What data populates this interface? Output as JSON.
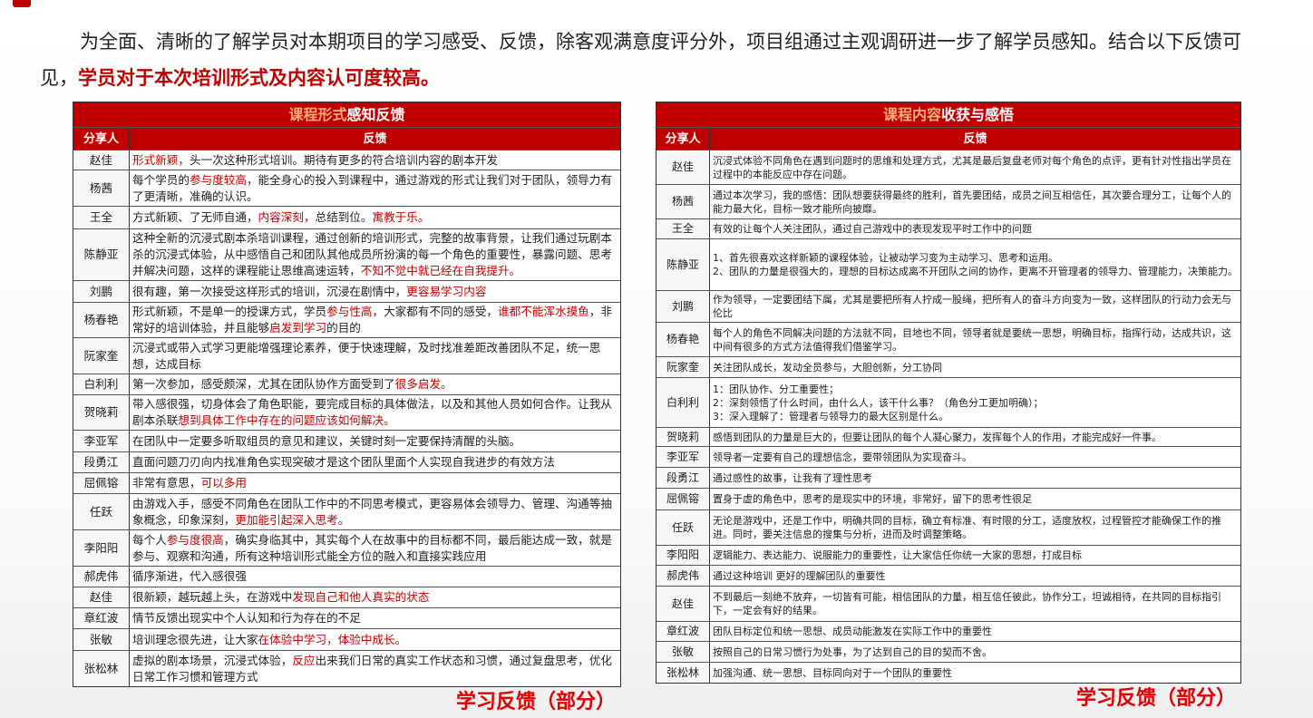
{
  "intro": {
    "text": "为全面、清晰的了解学员对本期项目的学习感受、反馈，除客观满意度评分外，项目组通过主观调研进一步了解学员感知。结合以下反馈可见，",
    "highlight": "学员对于本次培训形式及内容认可度较高。"
  },
  "colors": {
    "accent": "#c00000",
    "title_highlight": "#ffb27a"
  },
  "stamp": "学习反馈（部分）",
  "tables": [
    {
      "title_highlight": "课程形式",
      "title_rest": "感知反馈",
      "col_name": "分享人",
      "col_feedback": "反馈",
      "rows": [
        {
          "name": "赵佳",
          "segments": [
            {
              "t": "形式新颖，",
              "red": true
            },
            {
              "t": "头一次这种形式培训。期待有更多的符合培训内容的剧本开发"
            }
          ]
        },
        {
          "name": "杨茜",
          "segments": [
            {
              "t": "每个学员的"
            },
            {
              "t": "参与度较高",
              "red": true
            },
            {
              "t": "，能全身心的投入到课程中，通过游戏的形式让我们对于团队，领导力有了更清晰，准确的认识。"
            }
          ]
        },
        {
          "name": "王全",
          "segments": [
            {
              "t": "方式新颖、了无师自通，"
            },
            {
              "t": "内容深刻，",
              "red": true
            },
            {
              "t": "总结到位。"
            },
            {
              "t": "寓教于乐。",
              "red": true
            }
          ]
        },
        {
          "name": "陈静亚",
          "segments": [
            {
              "t": "这种全新的沉浸式剧本杀培训课程，通过创新的培训形式，完整的故事背景，让我们通过玩剧本杀的沉浸式体验，从中感悟自己和团队其他成员所扮演的每一个角色的重要性，暴露问题、思考并解决问题，这样的课程能让思维高速运转，"
            },
            {
              "t": "不知不觉中就已经在自我提升。",
              "red": true
            }
          ]
        },
        {
          "name": "刘鹏",
          "segments": [
            {
              "t": "很有趣，第一次接受这样形式的培训，沉浸在剧情中，"
            },
            {
              "t": "更容易学习内容",
              "red": true
            }
          ]
        },
        {
          "name": "杨春艳",
          "segments": [
            {
              "t": "形式新颖，不是单一的授课方式，学员"
            },
            {
              "t": "参与性高",
              "red": true
            },
            {
              "t": "，大家都有不同的感受，"
            },
            {
              "t": "谁都不能浑水摸鱼",
              "red": true
            },
            {
              "t": "，非常好的培训体验，并且能够"
            },
            {
              "t": "启发到学习",
              "red": true
            },
            {
              "t": "的目的"
            }
          ]
        },
        {
          "name": "阮家奎",
          "segments": [
            {
              "t": "沉浸式或带入式学习更能增强理论素养，便于快速理解，及时找准差距改善团队不足，统一思想，达成目标"
            }
          ]
        },
        {
          "name": "白利利",
          "segments": [
            {
              "t": "第一次参加，感受颇深，尤其在团队协作方面受到了"
            },
            {
              "t": "很多启发。",
              "red": true
            }
          ]
        },
        {
          "name": "贺晓莉",
          "segments": [
            {
              "t": "带入感很强，切身体会了角色职能，要完成目标的具体做法，以及和其他人员如何合作。让我从剧本杀联"
            },
            {
              "t": "想到具体工作中存在的问题应该如何解决。",
              "red": true
            }
          ]
        },
        {
          "name": "李亚军",
          "segments": [
            {
              "t": "在团队中一定要多听取组员的意见和建议，关键时刻一定要保持清醒的头脑。"
            }
          ]
        },
        {
          "name": "段勇江",
          "segments": [
            {
              "t": "直面问题刀刃向内找准角色实现突破才是这个团队里面个人实现自我进步的有效方法"
            }
          ]
        },
        {
          "name": "屈佩镕",
          "segments": [
            {
              "t": "非常有意思，"
            },
            {
              "t": "可以多用",
              "red": true
            }
          ]
        },
        {
          "name": "任跃",
          "segments": [
            {
              "t": "由游戏入手，感受不同角色在团队工作中的不同思考模式，更容易体会领导力、管理、沟通等抽象概念，印象深刻，"
            },
            {
              "t": "更加能引起深入思考。",
              "red": true
            }
          ]
        },
        {
          "name": "李阳阳",
          "segments": [
            {
              "t": "每个人"
            },
            {
              "t": "参与度很高",
              "red": true
            },
            {
              "t": "，确实身临其中，其实每个人在故事中的目标都不同，最后能达成一致，就是参与、观察和沟通，所有这种培训形式能全方位的融入和直接实践应用"
            }
          ]
        },
        {
          "name": "郝虎伟",
          "segments": [
            {
              "t": "循序渐进，代入感很强"
            }
          ]
        },
        {
          "name": "赵佳",
          "segments": [
            {
              "t": "很新颖，越玩越上头，在游戏中"
            },
            {
              "t": "发现自己和他人真实的状态",
              "red": true
            }
          ]
        },
        {
          "name": "章红波",
          "segments": [
            {
              "t": "情节反馈出现实中个人认知和行为存在的不足"
            }
          ]
        },
        {
          "name": "张敏",
          "segments": [
            {
              "t": "培训理念很先进，让大家"
            },
            {
              "t": "在体验中学习，体验中成长。",
              "red": true
            }
          ]
        },
        {
          "name": "张松林",
          "segments": [
            {
              "t": "虚拟的剧本场景，沉浸式体验，"
            },
            {
              "t": "反应",
              "red": true
            },
            {
              "t": "出来我们日常的真实工作状态和习惯，通过复盘思考，优化日常工作习惯和管理方式"
            }
          ]
        }
      ]
    },
    {
      "title_highlight": "课程内容",
      "title_rest": "收获与感悟",
      "col_name": "分享人",
      "col_feedback": "反馈",
      "rows": [
        {
          "name": "赵佳",
          "segments": [
            {
              "t": "沉浸式体验不同角色在遇到问题时的思维和处理方式，尤其是最后复盘老师对每个角色的点评，更有针对性指出学员在过程中的本能反应中存在问题。"
            }
          ]
        },
        {
          "name": "杨茜",
          "segments": [
            {
              "t": "通过本次学习，我的感悟：团队想要获得最终的胜利，首先要团结，成员之间互相信任，其次要合理分工，让每个人的能力最大化，目标一致才能所向披靡。"
            }
          ]
        },
        {
          "name": "王全",
          "segments": [
            {
              "t": "有效的让每个人关注团队，通过自己游戏中的表现发现平时工作中的问题"
            }
          ]
        },
        {
          "name": "陈静亚",
          "segments": [
            {
              "t": "1、首先很喜欢这样新颖的课程体验，让被动学习变为主动学习、思考和运用。\n2、团队的力量是很强大的，理想的目标达成离不开团队之间的协作，更离不开管理者的领导力、管理能力，决策能力。"
            }
          ]
        },
        {
          "name": "刘鹏",
          "segments": [
            {
              "t": "作为领导，一定要团结下属，尤其是要把所有人拧成一股绳，把所有人的奋斗方向变为一致，这样团队的行动力会无与伦比"
            }
          ]
        },
        {
          "name": "杨春艳",
          "segments": [
            {
              "t": "每个人的角色不同解决问题的方法就不同，目地也不同，领导者就是要统一思想，明确目标，指挥行动，达成共识，这中间有很多的方式方法值得我们借鉴学习。"
            }
          ]
        },
        {
          "name": "阮家奎",
          "segments": [
            {
              "t": "关注团队成长，发动全员参与，大胆创新，分工协同"
            }
          ]
        },
        {
          "name": "白利利",
          "segments": [
            {
              "t": "1：团队协作、分工重要性；\n2：深刻领悟了什么时间，由什么人，该干什么事？（角色分工更加明确）；\n3：深入理解了：管理者与领导力的最大区别是什么。"
            }
          ]
        },
        {
          "name": "贺晓莉",
          "segments": [
            {
              "t": "感悟到团队的力量是巨大的，但要让团队的每个人凝心聚力，发挥每个人的作用，才能完成好一件事。"
            }
          ]
        },
        {
          "name": "李亚军",
          "segments": [
            {
              "t": "领导者一定要有自己的理想信念，要带领团队为实现奋斗。"
            }
          ]
        },
        {
          "name": "段勇江",
          "segments": [
            {
              "t": "通过感性的故事，让我有了理性思考"
            }
          ]
        },
        {
          "name": "屈佩镕",
          "segments": [
            {
              "t": "置身于虚的角色中，思考的是现实中的环境，非常好，留下的思考性很足"
            }
          ]
        },
        {
          "name": "任跃",
          "segments": [
            {
              "t": "无论是游戏中，还是工作中，明确共同的目标，确立有标准、有时限的分工，适度放权，过程管控才能确保工作的推进。同时，要关注信息的搜集与分析，进而及时调整策略。"
            }
          ]
        },
        {
          "name": "李阳阳",
          "segments": [
            {
              "t": "逻辑能力、表达能力、说服能力的重要性，让大家信任你统一大家的思想，打成目标"
            }
          ]
        },
        {
          "name": "郝虎伟",
          "segments": [
            {
              "t": "通过这种培训 更好的理解团队的重要性"
            }
          ]
        },
        {
          "name": "赵佳",
          "segments": [
            {
              "t": "不到最后一刻绝不放弃，一切皆有可能，相信团队的力量，相互信任彼此，协作分工，坦诚相待，在共同的目标指引下，一定会有好的结果。"
            }
          ]
        },
        {
          "name": "章红波",
          "segments": [
            {
              "t": "团队目标定位和统一思想、成员动能激发在实际工作中的重要性"
            }
          ]
        },
        {
          "name": "张敏",
          "segments": [
            {
              "t": "按照自己的日常习惯行为处事，为了达到自己的目的契而不舍。"
            }
          ]
        },
        {
          "name": "张松林",
          "segments": [
            {
              "t": "加强沟通、统一思想、目标同向对于一个团队的重要性"
            }
          ]
        }
      ]
    }
  ]
}
